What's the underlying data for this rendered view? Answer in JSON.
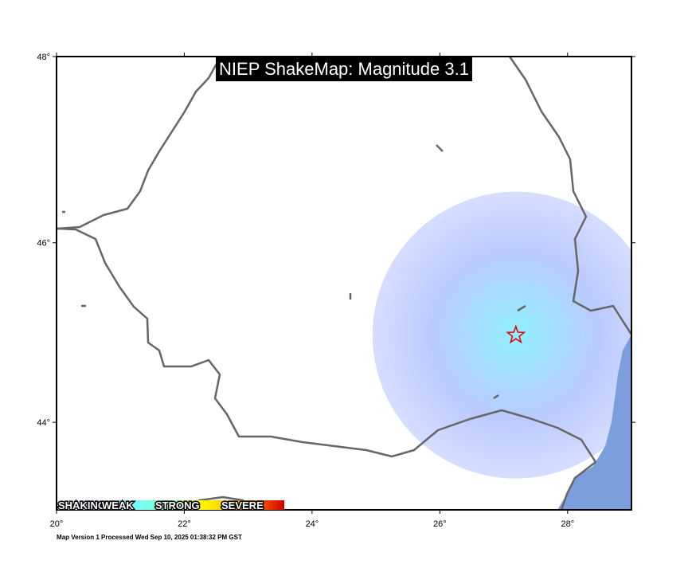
{
  "title": "NIEP ShakeMap: Magnitude 3.1",
  "map": {
    "lon_range": [
      20,
      29
    ],
    "lat_range": [
      43,
      48
    ],
    "lon_ticks": [
      {
        "value": 20,
        "label": "20°"
      },
      {
        "value": 22,
        "label": "22°"
      },
      {
        "value": 24,
        "label": "24°"
      },
      {
        "value": 26,
        "label": "26°"
      },
      {
        "value": 28,
        "label": "28°"
      }
    ],
    "lat_ticks": [
      {
        "value": 48,
        "label": "48°"
      },
      {
        "value": 46,
        "label": "46°"
      },
      {
        "value": 44,
        "label": "44°"
      }
    ],
    "epicenter": {
      "lon": 27.19,
      "lat": 44.98
    }
  },
  "legend": {
    "labels": [
      "SHAKING",
      "WEAK",
      "STRONG",
      "SEVERE"
    ]
  },
  "footer": "Map Version 1 Processed Wed Sep 10, 2025 01:38:32 PM GST"
}
